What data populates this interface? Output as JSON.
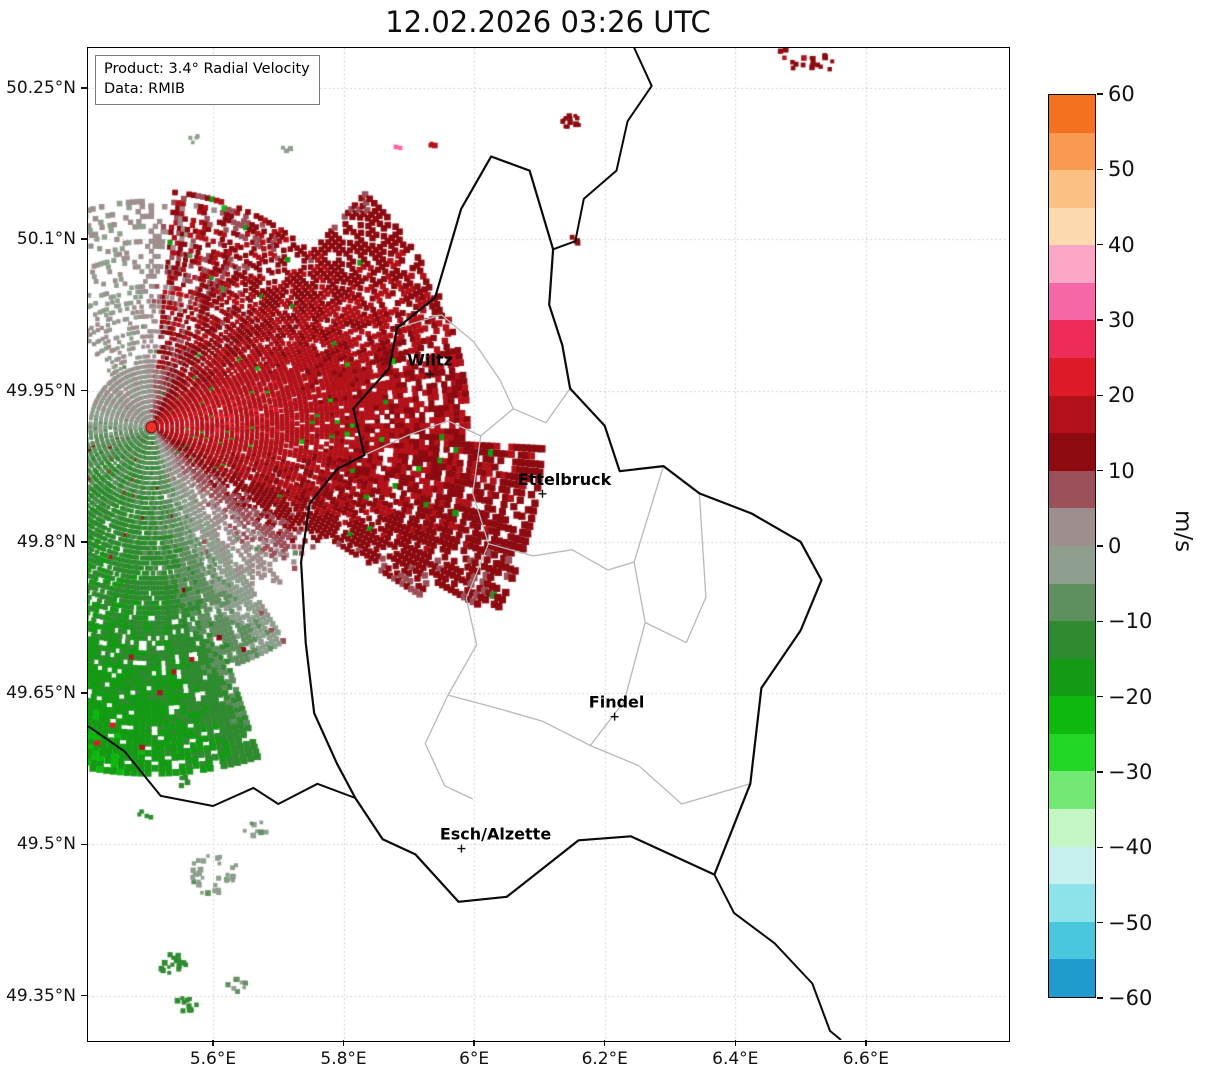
{
  "title": "12.02.2026 03:26 UTC",
  "info_box": {
    "line1": "Product: 3.4° Radial Velocity",
    "line2": "Data: RMIB"
  },
  "axes": {
    "x_range": [
      5.4086,
      6.8177
    ],
    "y_range": [
      49.306,
      50.2896
    ],
    "x_ticks": [
      {
        "value": 5.6,
        "label": "5.6°E"
      },
      {
        "value": 5.8,
        "label": "5.8°E"
      },
      {
        "value": 6.0,
        "label": "6°E"
      },
      {
        "value": 6.2,
        "label": "6.2°E"
      },
      {
        "value": 6.4,
        "label": "6.4°E"
      },
      {
        "value": 6.6,
        "label": "6.6°E"
      }
    ],
    "y_ticks": [
      {
        "value": 50.25,
        "label": "50.25°N"
      },
      {
        "value": 50.1,
        "label": "50.1°N"
      },
      {
        "value": 49.95,
        "label": "49.95°N"
      },
      {
        "value": 49.8,
        "label": "49.8°N"
      },
      {
        "value": 49.65,
        "label": "49.65°N"
      },
      {
        "value": 49.5,
        "label": "49.5°N"
      },
      {
        "value": 49.35,
        "label": "49.35°N"
      }
    ]
  },
  "colorbar": {
    "label": "m/s",
    "ticks": [
      {
        "value": 60,
        "label": "60"
      },
      {
        "value": 50,
        "label": "50"
      },
      {
        "value": 40,
        "label": "40"
      },
      {
        "value": 30,
        "label": "30"
      },
      {
        "value": 20,
        "label": "20"
      },
      {
        "value": 10,
        "label": "10"
      },
      {
        "value": 0,
        "label": "0"
      },
      {
        "value": -10,
        "label": "−10"
      },
      {
        "value": -20,
        "label": "−20"
      },
      {
        "value": -30,
        "label": "−30"
      },
      {
        "value": -40,
        "label": "−40"
      },
      {
        "value": -50,
        "label": "−50"
      },
      {
        "value": -60,
        "label": "−60"
      }
    ],
    "bands": [
      {
        "min": 55,
        "max": 60,
        "color": "#f3711f"
      },
      {
        "min": 50,
        "max": 55,
        "color": "#f89a52"
      },
      {
        "min": 45,
        "max": 50,
        "color": "#fbc183"
      },
      {
        "min": 40,
        "max": 45,
        "color": "#fdd9ae"
      },
      {
        "min": 35,
        "max": 40,
        "color": "#fba6c6"
      },
      {
        "min": 30,
        "max": 35,
        "color": "#f667a6"
      },
      {
        "min": 25,
        "max": 30,
        "color": "#ee2c5c"
      },
      {
        "min": 20,
        "max": 25,
        "color": "#df1a28"
      },
      {
        "min": 15,
        "max": 20,
        "color": "#b3121a"
      },
      {
        "min": 10,
        "max": 15,
        "color": "#8c0a10"
      },
      {
        "min": 5,
        "max": 10,
        "color": "#9c5059"
      },
      {
        "min": 0,
        "max": 5,
        "color": "#9f8e8e"
      },
      {
        "min": -5,
        "max": 0,
        "color": "#8e9f8e"
      },
      {
        "min": -10,
        "max": -5,
        "color": "#5f8f5f"
      },
      {
        "min": -15,
        "max": -10,
        "color": "#2f8b2f"
      },
      {
        "min": -20,
        "max": -15,
        "color": "#149a14"
      },
      {
        "min": -25,
        "max": -20,
        "color": "#0cb90c"
      },
      {
        "min": -30,
        "max": -25,
        "color": "#24d624"
      },
      {
        "min": -35,
        "max": -30,
        "color": "#72e972"
      },
      {
        "min": -40,
        "max": -35,
        "color": "#c4f6c4"
      },
      {
        "min": -45,
        "max": -40,
        "color": "#c8f0ef"
      },
      {
        "min": -50,
        "max": -45,
        "color": "#8ee3eb"
      },
      {
        "min": -55,
        "max": -50,
        "color": "#4ac7de"
      },
      {
        "min": -60,
        "max": -55,
        "color": "#1f9bcd"
      }
    ]
  },
  "cities": [
    {
      "name": "Wiltz",
      "lon": 5.9325,
      "lat": 49.9661,
      "label_dx": 0
    },
    {
      "name": "Ettelbruck",
      "lon": 6.1047,
      "lat": 49.8476,
      "label_dx": 22
    },
    {
      "name": "Findel",
      "lon": 6.2152,
      "lat": 49.6266,
      "label_dx": 2
    },
    {
      "name": "Esch/Alzette",
      "lon": 5.9806,
      "lat": 49.4958,
      "label_dx": 34
    }
  ],
  "radar": {
    "lon": 5.5057,
    "lat": 49.9135,
    "seed": 1337,
    "outbound_center_az": 82,
    "outbound_vmax": 19,
    "inbound_center_az": 208,
    "inbound_vmax": 18,
    "patches": [
      {
        "lon": 6.49,
        "lat": 50.286,
        "v": 14,
        "n": 16,
        "spread": 22
      },
      {
        "lon": 6.535,
        "lat": 50.272,
        "v": 13,
        "n": 10,
        "spread": 14
      },
      {
        "lon": 6.15,
        "lat": 50.216,
        "v": 13,
        "n": 12,
        "spread": 11
      },
      {
        "lon": 6.155,
        "lat": 50.1,
        "v": 12,
        "n": 5,
        "spread": 6
      },
      {
        "lon": 5.711,
        "lat": 50.189,
        "v": -3,
        "n": 4,
        "spread": 6
      },
      {
        "lon": 5.573,
        "lat": 50.199,
        "v": -3,
        "n": 4,
        "spread": 6
      },
      {
        "lon": 5.884,
        "lat": 50.191,
        "v": 32,
        "n": 2,
        "spread": 3
      },
      {
        "lon": 5.936,
        "lat": 50.192,
        "v": 16,
        "n": 3,
        "spread": 4
      },
      {
        "lon": 5.6,
        "lat": 49.47,
        "v": -4,
        "n": 34,
        "spread": 27
      },
      {
        "lon": 5.665,
        "lat": 49.515,
        "v": -4,
        "n": 8,
        "spread": 12
      },
      {
        "lon": 5.54,
        "lat": 49.38,
        "v": -13,
        "n": 18,
        "spread": 15
      },
      {
        "lon": 5.558,
        "lat": 49.341,
        "v": -13,
        "n": 10,
        "spread": 11
      },
      {
        "lon": 5.635,
        "lat": 49.361,
        "v": -4,
        "n": 9,
        "spread": 10
      },
      {
        "lon": 5.496,
        "lat": 49.529,
        "v": -12,
        "n": 5,
        "spread": 7
      },
      {
        "lon": 5.556,
        "lat": 49.562,
        "v": -12,
        "n": 4,
        "spread": 6
      }
    ]
  },
  "borders": {
    "country": [
      [
        6.026,
        50.182
      ],
      [
        6.085,
        50.168
      ],
      [
        6.121,
        50.09
      ],
      [
        6.115,
        50.035
      ],
      [
        6.135,
        49.995
      ],
      [
        6.147,
        49.952
      ],
      [
        6.2,
        49.915
      ],
      [
        6.223,
        49.87
      ],
      [
        6.29,
        49.875
      ],
      [
        6.345,
        49.848
      ],
      [
        6.425,
        49.828
      ],
      [
        6.5,
        49.8
      ],
      [
        6.532,
        49.762
      ],
      [
        6.5,
        49.712
      ],
      [
        6.44,
        49.655
      ],
      [
        6.423,
        49.56
      ],
      [
        6.368,
        49.47
      ],
      [
        6.24,
        49.508
      ],
      [
        6.16,
        49.504
      ],
      [
        6.05,
        49.448
      ],
      [
        5.976,
        49.443
      ],
      [
        5.91,
        49.49
      ],
      [
        5.86,
        49.505
      ],
      [
        5.818,
        49.546
      ],
      [
        5.79,
        49.58
      ],
      [
        5.755,
        49.63
      ],
      [
        5.742,
        49.7
      ],
      [
        5.735,
        49.78
      ],
      [
        5.748,
        49.838
      ],
      [
        5.79,
        49.872
      ],
      [
        5.832,
        49.886
      ],
      [
        5.815,
        49.932
      ],
      [
        5.87,
        49.972
      ],
      [
        5.882,
        50.012
      ],
      [
        5.94,
        50.042
      ],
      [
        5.962,
        50.09
      ],
      [
        5.98,
        50.13
      ],
      [
        6.026,
        50.182
      ]
    ],
    "neighbors": [
      [
        [
          6.245,
          50.29
        ],
        [
          6.272,
          50.252
        ],
        [
          6.235,
          50.217
        ],
        [
          6.218,
          50.168
        ],
        [
          6.168,
          50.14
        ],
        [
          6.155,
          50.098
        ],
        [
          6.121,
          50.09
        ]
      ],
      [
        [
          5.409,
          49.617
        ],
        [
          5.465,
          49.592
        ],
        [
          5.52,
          49.548
        ],
        [
          5.6,
          49.538
        ],
        [
          5.662,
          49.556
        ],
        [
          5.7,
          49.54
        ],
        [
          5.76,
          49.56
        ],
        [
          5.818,
          49.546
        ]
      ],
      [
        [
          6.368,
          49.47
        ],
        [
          6.398,
          49.432
        ],
        [
          6.46,
          49.402
        ],
        [
          6.518,
          49.362
        ],
        [
          6.545,
          49.315
        ],
        [
          6.562,
          49.306
        ]
      ]
    ],
    "internal": [
      [
        [
          5.832,
          49.886
        ],
        [
          5.9,
          49.906
        ],
        [
          5.96,
          49.92
        ],
        [
          6.01,
          49.905
        ],
        [
          6.06,
          49.932
        ],
        [
          6.11,
          49.918
        ],
        [
          6.147,
          49.952
        ]
      ],
      [
        [
          5.882,
          50.012
        ],
        [
          5.95,
          50.025
        ],
        [
          6.0,
          49.998
        ],
        [
          6.04,
          49.96
        ],
        [
          6.06,
          49.932
        ]
      ],
      [
        [
          6.01,
          49.905
        ],
        [
          5.998,
          49.848
        ],
        [
          6.022,
          49.798
        ],
        [
          5.988,
          49.744
        ],
        [
          6.004,
          49.698
        ],
        [
          5.96,
          49.648
        ]
      ],
      [
        [
          6.022,
          49.798
        ],
        [
          6.09,
          49.786
        ],
        [
          6.15,
          49.792
        ],
        [
          6.205,
          49.772
        ],
        [
          6.245,
          49.78
        ],
        [
          6.29,
          49.875
        ]
      ],
      [
        [
          6.245,
          49.78
        ],
        [
          6.262,
          49.72
        ],
        [
          6.325,
          49.7
        ],
        [
          6.355,
          49.745
        ],
        [
          6.345,
          49.848
        ]
      ],
      [
        [
          5.96,
          49.648
        ],
        [
          6.03,
          49.636
        ],
        [
          6.105,
          49.622
        ],
        [
          6.178,
          49.598
        ],
        [
          6.252,
          49.578
        ],
        [
          6.318,
          49.54
        ],
        [
          6.423,
          49.56
        ]
      ],
      [
        [
          6.178,
          49.598
        ],
        [
          6.23,
          49.642
        ],
        [
          6.262,
          49.72
        ]
      ],
      [
        [
          5.96,
          49.648
        ],
        [
          5.925,
          49.6
        ],
        [
          5.955,
          49.558
        ],
        [
          5.998,
          49.545
        ]
      ]
    ]
  },
  "chart_data": {
    "type": "heatmap",
    "title": "12.02.2026 03:26 UTC",
    "product": "3.4° Radial Velocity",
    "source": "RMIB",
    "units": "m/s",
    "x_axis": {
      "ticks": [
        5.6,
        5.8,
        6.0,
        6.2,
        6.4,
        6.6
      ],
      "tick_suffix": "°E",
      "range": [
        5.41,
        6.82
      ]
    },
    "y_axis": {
      "ticks": [
        50.25,
        50.1,
        49.95,
        49.8,
        49.65,
        49.5,
        49.35
      ],
      "tick_suffix": "°N",
      "range": [
        49.31,
        50.29
      ]
    },
    "colorbar": {
      "range": [
        -60,
        60
      ],
      "ticks": [
        60,
        50,
        40,
        30,
        20,
        10,
        0,
        -10,
        -20,
        -30,
        -40,
        -50,
        -60
      ],
      "units": "m/s"
    },
    "radar_site": {
      "lon_e": 5.506,
      "lat_n": 49.913
    },
    "labeled_places": [
      "Wiltz",
      "Ettelbruck",
      "Findel",
      "Esch/Alzette"
    ],
    "velocity_features": [
      {
        "sector": "ENE–E of radar toward Wiltz and Ettelbruck",
        "radial_velocity_ms": "+10 to +25",
        "appearance": "red / dark-red outbound fan, dark-red lobe reaching ~6.1°E 49.8°N"
      },
      {
        "sector": "NNE of radar",
        "radial_velocity_ms": "+8 to +17",
        "appearance": "dark-red streaks"
      },
      {
        "sector": "S to SSW of radar",
        "radial_velocity_ms": "-8 to -25",
        "appearance": "green inbound fan extending to map edge"
      },
      {
        "sector": "near radar and fan edges",
        "radial_velocity_ms": "-6 to +8",
        "appearance": "gray-green / gray-red (mauve) speckle"
      },
      {
        "sector": "far NE corner and far S",
        "radial_velocity_ms": "about ±10 to ±15",
        "appearance": "scattered dark-red and dark-green clutter patches"
      }
    ]
  }
}
